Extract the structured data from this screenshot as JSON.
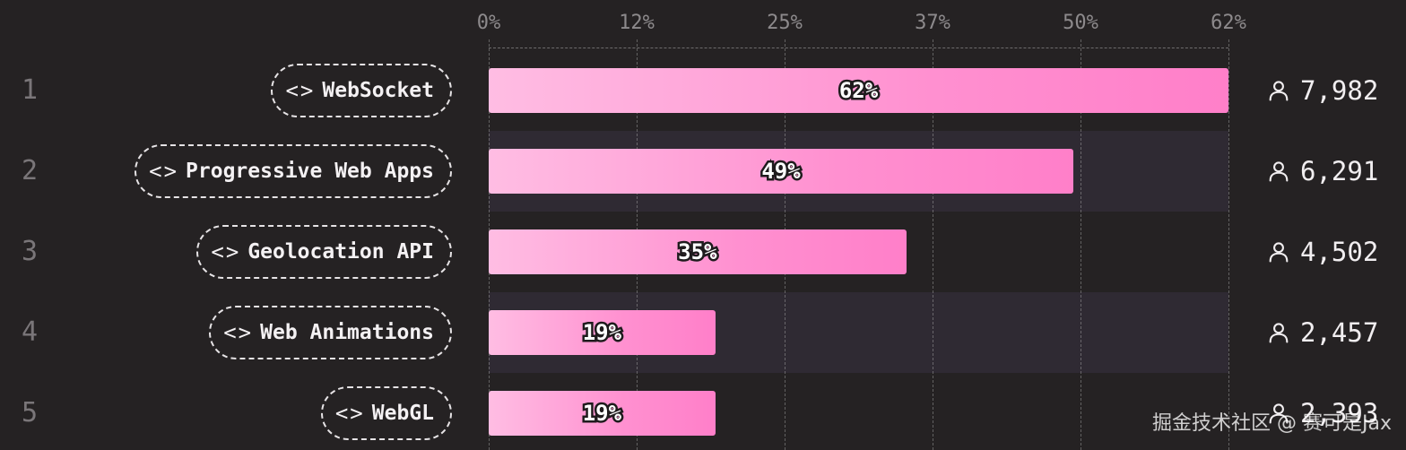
{
  "chart_data": {
    "type": "bar",
    "orientation": "horizontal",
    "x_ticks": [
      "0%",
      "12%",
      "25%",
      "37%",
      "50%",
      "62%"
    ],
    "xlim": [
      0,
      62
    ],
    "grid": true,
    "series": [
      {
        "values": [
          62,
          49,
          35,
          19,
          19
        ]
      }
    ],
    "rows": [
      {
        "rank": "1",
        "category": "WebSocket",
        "value": 62,
        "value_label": "62%",
        "count": "7,982"
      },
      {
        "rank": "2",
        "category": "Progressive Web Apps",
        "value": 49,
        "value_label": "49%",
        "count": "6,291"
      },
      {
        "rank": "3",
        "category": "Geolocation API",
        "value": 35,
        "value_label": "35%",
        "count": "4,502"
      },
      {
        "rank": "4",
        "category": "Web Animations",
        "value": 19,
        "value_label": "19%",
        "count": "2,457"
      },
      {
        "rank": "5",
        "category": "WebGL",
        "value": 19,
        "value_label": "19%",
        "count": "2,393"
      }
    ],
    "category_icon": "code-brackets-icon",
    "count_icon": "user-icon",
    "bar_color_start": "#ffbde3",
    "bar_color_end": "#ff7fc9",
    "band_color": "#2f2a33",
    "background_color": "#252223"
  },
  "watermark": "掘金技术社区 @ 赛可是Jax"
}
